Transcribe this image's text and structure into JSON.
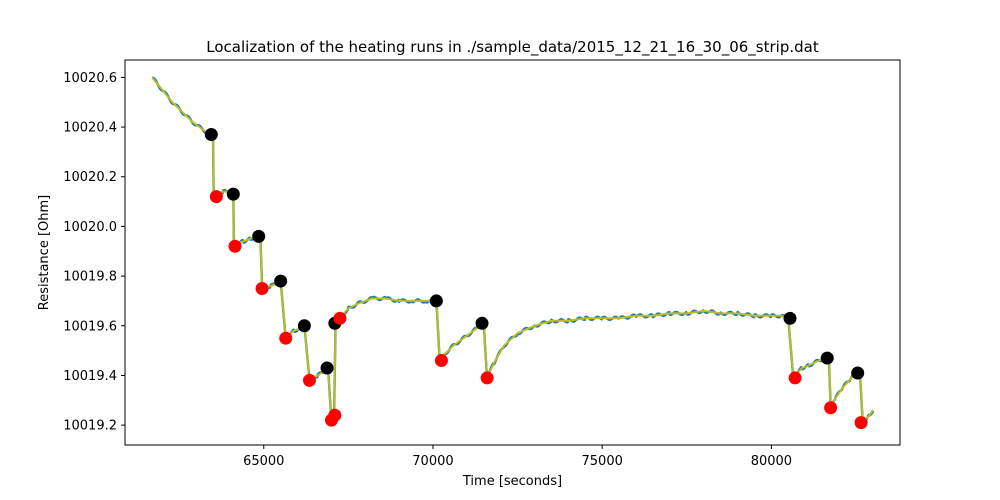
{
  "chart_data": {
    "type": "line",
    "title": "Localization of the heating runs in ./sample_data/2015_12_21_16_30_06_strip.dat",
    "xlabel": "Time [seconds]",
    "ylabel": "Resistance [Ohm]",
    "xlim": [
      60900,
      83800
    ],
    "ylim": [
      10019.12,
      10020.67
    ],
    "xticks": [
      65000,
      70000,
      75000,
      80000
    ],
    "xtick_labels": [
      "65000",
      "70000",
      "75000",
      "80000"
    ],
    "yticks": [
      10019.2,
      10019.4,
      10019.6,
      10019.8,
      10020.0,
      10020.2,
      10020.4,
      10020.6
    ],
    "ytick_labels": [
      "10019.2",
      "10019.4",
      "10019.6",
      "10019.8",
      "10020.0",
      "10020.2",
      "10020.4",
      "10020.6"
    ],
    "grid": false,
    "series": [
      {
        "role": "raw",
        "color": "#1f77b4",
        "x": [
          61700,
          62000,
          62300,
          62600,
          62900,
          63200,
          63500,
          63520,
          63600,
          63800,
          64000,
          64100,
          64120,
          64200,
          64400,
          64600,
          64800,
          64900,
          64950,
          65000,
          65200,
          65400,
          65500,
          65650,
          65700,
          65900,
          66100,
          66200,
          66350,
          66400,
          66600,
          66800,
          66900,
          67000,
          67080,
          67120,
          67150,
          67200,
          67300,
          67500,
          67800,
          68200,
          68600,
          69000,
          69400,
          69800,
          70100,
          70200,
          70300,
          70600,
          70900,
          71200,
          71400,
          71500,
          71600,
          71800,
          72100,
          72500,
          73000,
          73500,
          74000,
          74500,
          75000,
          75500,
          76000,
          76500,
          77000,
          77500,
          78000,
          78500,
          79000,
          79500,
          80000,
          80300,
          80500,
          80650,
          80700,
          80900,
          81100,
          81400,
          81600,
          81700,
          81750,
          81900,
          82100,
          82300,
          82500,
          82620,
          82700,
          82900,
          83000
        ],
        "y": [
          10020.6,
          10020.55,
          10020.5,
          10020.46,
          10020.42,
          10020.39,
          10020.36,
          10020.12,
          10020.13,
          10020.14,
          10020.14,
          10020.13,
          10019.92,
          10019.93,
          10019.94,
          10019.95,
          10019.96,
          10019.96,
          10019.75,
          10019.75,
          10019.76,
          10019.77,
          10019.78,
          10019.55,
          10019.56,
          10019.58,
          10019.59,
          10019.6,
          10019.38,
          10019.39,
          10019.4,
          10019.42,
          10019.43,
          10019.22,
          10019.24,
          10019.6,
          10019.62,
          10019.63,
          10019.64,
          10019.67,
          10019.69,
          10019.71,
          10019.71,
          10019.7,
          10019.7,
          10019.7,
          10019.7,
          10019.46,
          10019.48,
          10019.52,
          10019.55,
          10019.58,
          10019.6,
          10019.61,
          10019.39,
          10019.45,
          10019.52,
          10019.57,
          10019.6,
          10019.62,
          10019.62,
          10019.63,
          10019.63,
          10019.63,
          10019.64,
          10019.64,
          10019.65,
          10019.65,
          10019.66,
          10019.65,
          10019.65,
          10019.64,
          10019.64,
          10019.64,
          10019.63,
          10019.39,
          10019.4,
          10019.43,
          10019.44,
          10019.46,
          10019.47,
          10019.47,
          10019.27,
          10019.31,
          10019.35,
          10019.38,
          10019.41,
          10019.4,
          10019.21,
          10019.24,
          10019.26
        ]
      },
      {
        "role": "smoothed",
        "color": "#bcbd22",
        "x": [
          61700,
          62000,
          62300,
          62600,
          62900,
          63200,
          63500,
          63520,
          63600,
          63800,
          64000,
          64100,
          64120,
          64200,
          64400,
          64600,
          64800,
          64900,
          64950,
          65000,
          65200,
          65400,
          65500,
          65650,
          65700,
          65900,
          66100,
          66200,
          66350,
          66400,
          66600,
          66800,
          66900,
          67000,
          67080,
          67120,
          67150,
          67200,
          67300,
          67500,
          67800,
          68200,
          68600,
          69000,
          69400,
          69800,
          70100,
          70200,
          70300,
          70600,
          70900,
          71200,
          71400,
          71500,
          71600,
          71800,
          72100,
          72500,
          73000,
          73500,
          74000,
          74500,
          75000,
          75500,
          76000,
          76500,
          77000,
          77500,
          78000,
          78500,
          79000,
          79500,
          80000,
          80300,
          80500,
          80650,
          80700,
          80900,
          81100,
          81400,
          81600,
          81700,
          81750,
          81900,
          82100,
          82300,
          82500,
          82620,
          82700,
          82900,
          83000
        ],
        "y": [
          10020.6,
          10020.55,
          10020.5,
          10020.46,
          10020.42,
          10020.39,
          10020.36,
          10020.12,
          10020.13,
          10020.14,
          10020.14,
          10020.13,
          10019.92,
          10019.93,
          10019.94,
          10019.95,
          10019.96,
          10019.96,
          10019.75,
          10019.75,
          10019.76,
          10019.77,
          10019.78,
          10019.55,
          10019.56,
          10019.58,
          10019.59,
          10019.6,
          10019.38,
          10019.39,
          10019.4,
          10019.42,
          10019.43,
          10019.22,
          10019.24,
          10019.6,
          10019.62,
          10019.63,
          10019.64,
          10019.67,
          10019.69,
          10019.71,
          10019.71,
          10019.7,
          10019.7,
          10019.7,
          10019.7,
          10019.46,
          10019.48,
          10019.52,
          10019.55,
          10019.58,
          10019.6,
          10019.61,
          10019.39,
          10019.45,
          10019.52,
          10019.57,
          10019.6,
          10019.62,
          10019.62,
          10019.63,
          10019.63,
          10019.63,
          10019.64,
          10019.64,
          10019.65,
          10019.65,
          10019.66,
          10019.65,
          10019.65,
          10019.64,
          10019.64,
          10019.64,
          10019.63,
          10019.39,
          10019.4,
          10019.43,
          10019.44,
          10019.46,
          10019.47,
          10019.47,
          10019.27,
          10019.31,
          10019.35,
          10019.38,
          10019.41,
          10019.4,
          10019.21,
          10019.24,
          10019.26
        ]
      }
    ],
    "markers_black": {
      "color": "#000000",
      "x": [
        63450,
        64100,
        64850,
        65500,
        66200,
        66870,
        67100,
        70100,
        71450,
        80550,
        81650,
        82550
      ],
      "y": [
        10020.37,
        10020.13,
        10019.96,
        10019.78,
        10019.6,
        10019.43,
        10019.61,
        10019.7,
        10019.61,
        10019.63,
        10019.47,
        10019.41
      ]
    },
    "markers_red": {
      "color": "#ff0000",
      "x": [
        63600,
        64150,
        64950,
        65650,
        66350,
        67000,
        67100,
        67250,
        70250,
        71600,
        80700,
        81750,
        82650
      ],
      "y": [
        10020.12,
        10019.92,
        10019.75,
        10019.55,
        10019.38,
        10019.22,
        10019.24,
        10019.63,
        10019.46,
        10019.39,
        10019.39,
        10019.27,
        10019.21
      ]
    }
  }
}
